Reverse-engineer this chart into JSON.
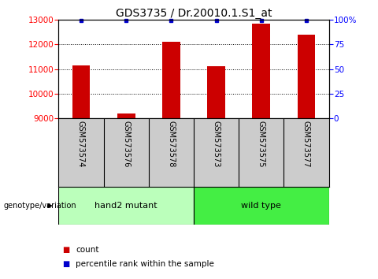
{
  "title": "GDS3735 / Dr.20010.1.S1_at",
  "samples": [
    "GSM573574",
    "GSM573576",
    "GSM573578",
    "GSM573573",
    "GSM573575",
    "GSM573577"
  ],
  "counts": [
    11150,
    9200,
    12100,
    11130,
    12820,
    12380
  ],
  "percentile_ranks": [
    99,
    99,
    99,
    99,
    99,
    99
  ],
  "bar_color": "#cc0000",
  "pct_color": "#0000cc",
  "ylim_left": [
    9000,
    13000
  ],
  "yticks_left": [
    9000,
    10000,
    11000,
    12000,
    13000
  ],
  "ylim_right": [
    0,
    100
  ],
  "yticks_right": [
    0,
    25,
    50,
    75,
    100
  ],
  "ytick_right_labels": [
    "0",
    "25",
    "50",
    "75",
    "100%"
  ],
  "group1_label": "hand2 mutant",
  "group2_label": "wild type",
  "group1_color": "#bbffbb",
  "group2_color": "#44ee44",
  "group1_indices": [
    0,
    1,
    2
  ],
  "group2_indices": [
    3,
    4,
    5
  ],
  "genotype_label": "genotype/variation",
  "legend_count_label": "count",
  "legend_pct_label": "percentile rank within the sample",
  "bar_width": 0.4,
  "title_fontsize": 10,
  "tick_label_fontsize": 7.5,
  "background_color": "#ffffff",
  "plot_bg_color": "#ffffff",
  "xlabel_area_color": "#cccccc"
}
